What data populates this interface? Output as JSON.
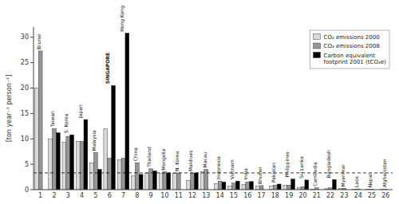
{
  "chart_data": {
    "type": "bar",
    "categories": [
      "1",
      "2",
      "3",
      "4",
      "5",
      "6",
      "7",
      "8",
      "9",
      "10",
      "11",
      "12",
      "13",
      "14",
      "15",
      "16",
      "17",
      "18",
      "19",
      "20",
      "21",
      "22",
      "23",
      "24",
      "25",
      "26"
    ],
    "series": [
      {
        "name": "CO₂ emissions 2000",
        "color": "#d9d9d9",
        "values": [
          20.0,
          10.0,
          9.3,
          9.5,
          5.3,
          12.0,
          5.9,
          2.7,
          3.3,
          3.2,
          3.2,
          1.8,
          3.5,
          1.2,
          0.7,
          1.0,
          0.7,
          0.7,
          0.9,
          0.4,
          0.05,
          0.2,
          0.2,
          0.1,
          0.05,
          0.05
        ]
      },
      {
        "name": "CO₂ emissions 2008",
        "color": "#969696",
        "values": [
          27.3,
          12.0,
          10.5,
          9.5,
          7.3,
          6.2,
          6.2,
          5.3,
          4.1,
          3.5,
          3.3,
          3.3,
          4.0,
          1.7,
          1.3,
          1.5,
          0.8,
          0.9,
          0.9,
          0.6,
          0.35,
          0.35,
          0.25,
          0.15,
          0.1,
          0.1
        ]
      },
      {
        "name": "Carbon equivalent\nfootprint 2001 (tCO₂e)",
        "color": "#000000",
        "values": [
          0,
          11.2,
          10.8,
          13.8,
          4.0,
          20.5,
          30.8,
          3.0,
          3.7,
          3.3,
          0,
          3.3,
          0,
          1.5,
          1.7,
          1.6,
          0,
          1.1,
          2.1,
          1.9,
          0,
          2.0,
          0,
          0,
          0,
          0
        ]
      }
    ],
    "annotations": [
      "Brunei",
      "Taiwan",
      "S. Korea",
      "Japan",
      "Malaysia",
      "SINGAPORE",
      "Hong Kong",
      "China",
      "Thailand",
      "Mongolia",
      "N. Korea",
      "Maldives",
      "Macau",
      "Indonesia",
      "Vietnam",
      "India",
      "Bhutan",
      "Pakistan",
      "Philippines",
      "Sri Lanka",
      "Cambodia",
      "Bangladesh",
      "Myanmar",
      "Laos",
      "Nepal",
      "Afghanistan"
    ],
    "reference_line": 3.3,
    "ylabel": "[ton year⁻¹ person⁻¹]",
    "ylim": [
      0,
      32
    ],
    "yticks": [
      0,
      5,
      10,
      15,
      20,
      25,
      30
    ],
    "legend": "upper right",
    "grid": false
  }
}
